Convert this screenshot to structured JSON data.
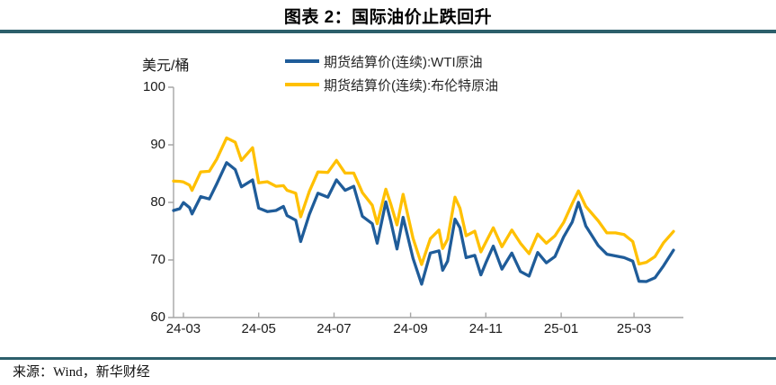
{
  "title": "图表 2：国际油价止跌回升",
  "y_axis_unit": "美元/桶",
  "source": "来源：Wind，新华财经",
  "colors": {
    "divider": "#2C5F6B",
    "axis": "#A6A6A6",
    "wti_line": "#1F5C99",
    "brent_line": "#FFC000",
    "text": "#1A1A1A"
  },
  "legend": [
    {
      "label": "期货结算价(连续):WTI原油"
    },
    {
      "label": "期货结算价(连续):布伦特原油"
    }
  ],
  "chart_data": {
    "type": "line",
    "title": "图表 2：国际油价止跌回升",
    "ylabel": "美元/桶",
    "xlabel": "",
    "ylim": [
      60,
      100
    ],
    "yticks": [
      60,
      70,
      80,
      90,
      100
    ],
    "xticks": [
      "24-03",
      "24-05",
      "24-07",
      "24-09",
      "24-11",
      "25-01",
      "25-03"
    ],
    "grid": false,
    "legend_position": "top",
    "x": [
      "2024-02-22",
      "2024-02-27",
      "2024-03-01",
      "2024-03-06",
      "2024-03-08",
      "2024-03-15",
      "2024-03-22",
      "2024-03-28",
      "2024-04-05",
      "2024-04-12",
      "2024-04-17",
      "2024-04-26",
      "2024-05-01",
      "2024-05-08",
      "2024-05-15",
      "2024-05-21",
      "2024-05-24",
      "2024-05-31",
      "2024-06-04",
      "2024-06-11",
      "2024-06-18",
      "2024-06-26",
      "2024-07-03",
      "2024-07-10",
      "2024-07-17",
      "2024-07-24",
      "2024-08-01",
      "2024-08-05",
      "2024-08-12",
      "2024-08-16",
      "2024-08-21",
      "2024-08-26",
      "2024-09-03",
      "2024-09-10",
      "2024-09-17",
      "2024-09-24",
      "2024-09-27",
      "2024-10-01",
      "2024-10-07",
      "2024-10-11",
      "2024-10-16",
      "2024-10-23",
      "2024-10-28",
      "2024-11-01",
      "2024-11-07",
      "2024-11-14",
      "2024-11-22",
      "2024-11-29",
      "2024-12-06",
      "2024-12-13",
      "2024-12-20",
      "2024-12-27",
      "2025-01-03",
      "2025-01-10",
      "2025-01-15",
      "2025-01-21",
      "2025-01-31",
      "2025-02-07",
      "2025-02-14",
      "2025-02-21",
      "2025-02-28",
      "2025-03-05",
      "2025-03-11",
      "2025-03-18",
      "2025-03-25",
      "2025-04-02"
    ],
    "series": [
      {
        "name": "期货结算价(连续):WTI原油",
        "color": "#1F5C99",
        "values": [
          78.6,
          78.9,
          79.97,
          79.1,
          78.0,
          81.0,
          80.6,
          83.2,
          86.9,
          85.7,
          82.7,
          83.9,
          79.0,
          78.4,
          78.6,
          79.3,
          77.7,
          76.9,
          73.2,
          77.9,
          81.6,
          80.9,
          83.9,
          82.1,
          82.8,
          77.6,
          76.3,
          72.9,
          80.1,
          76.7,
          71.9,
          77.4,
          70.3,
          65.8,
          71.2,
          71.6,
          68.2,
          69.8,
          77.1,
          75.6,
          70.4,
          70.8,
          67.4,
          69.5,
          72.4,
          68.4,
          71.2,
          68.0,
          67.2,
          71.3,
          69.5,
          70.6,
          74.0,
          76.6,
          80.0,
          75.9,
          72.5,
          71.0,
          70.7,
          70.4,
          69.8,
          66.3,
          66.25,
          66.9,
          69.0,
          71.7
        ]
      },
      {
        "name": "期货结算价(连续):布伦特原油",
        "color": "#FFC000",
        "values": [
          83.7,
          83.65,
          83.55,
          83.0,
          82.1,
          85.3,
          85.4,
          87.5,
          91.2,
          90.45,
          87.3,
          89.5,
          83.4,
          83.6,
          82.8,
          82.9,
          82.1,
          81.6,
          77.5,
          81.9,
          85.3,
          85.2,
          87.3,
          85.1,
          85.1,
          81.7,
          79.5,
          76.3,
          82.3,
          79.7,
          76.1,
          81.4,
          73.8,
          69.2,
          73.7,
          75.2,
          72.0,
          73.6,
          80.9,
          79.0,
          74.2,
          75.0,
          71.4,
          73.1,
          75.6,
          72.3,
          75.2,
          72.9,
          71.1,
          74.5,
          72.9,
          74.2,
          76.5,
          79.8,
          82.0,
          79.3,
          76.8,
          74.7,
          74.7,
          74.4,
          73.2,
          69.3,
          69.6,
          70.6,
          73.0,
          74.95
        ]
      }
    ]
  }
}
